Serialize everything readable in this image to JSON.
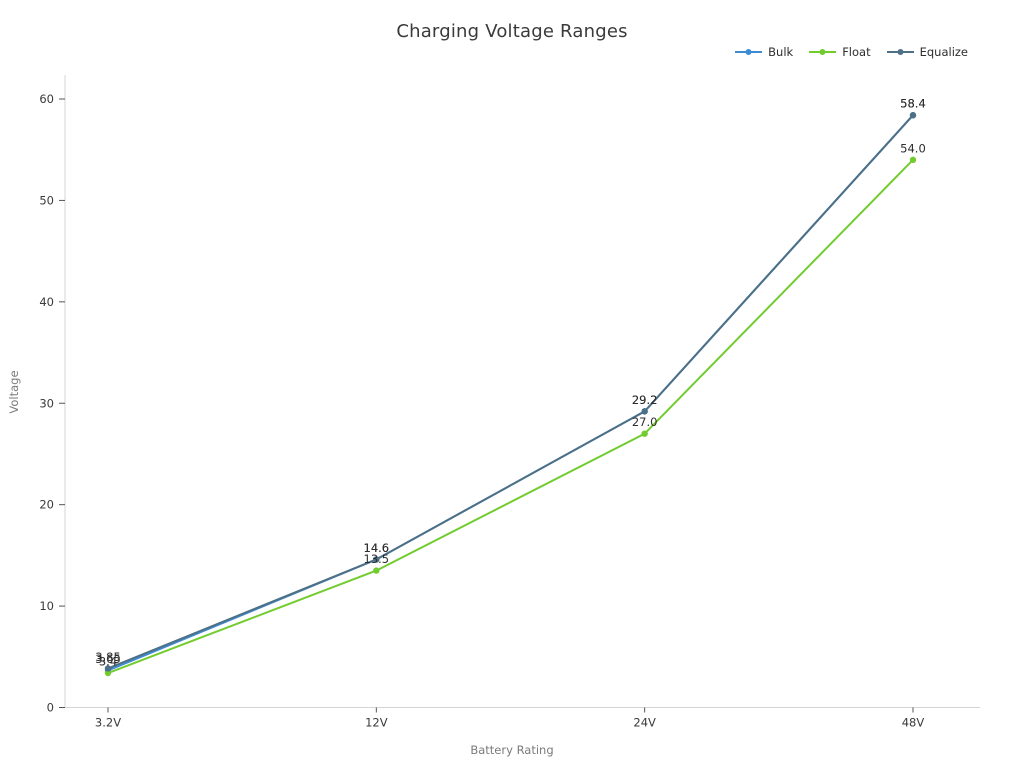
{
  "chart_data": {
    "type": "line",
    "title": "Charging Voltage Ranges",
    "xlabel": "Battery Rating",
    "ylabel": "Voltage",
    "categories": [
      "3.2V",
      "12V",
      "24V",
      "48V"
    ],
    "series": [
      {
        "name": "Bulk",
        "color": "#3d8bd4",
        "values": [
          3.65,
          14.6,
          29.2,
          58.4
        ],
        "point_labels": [
          "3.65",
          "14.6",
          "29.2",
          "58.4"
        ]
      },
      {
        "name": "Float",
        "color": "#72cc30",
        "values": [
          3.4,
          13.5,
          27.0,
          54.0
        ],
        "point_labels": [
          "3.4",
          "13.5",
          "27.0",
          "54.0"
        ]
      },
      {
        "name": "Equalize",
        "color": "#4e7086",
        "values": [
          3.85,
          14.6,
          29.2,
          58.4
        ],
        "point_labels": [
          "3.85",
          "14.6",
          "29.2",
          "58.4"
        ]
      }
    ],
    "ylim": [
      0,
      60
    ],
    "yticks": [
      0,
      10,
      20,
      30,
      40,
      50,
      60
    ],
    "grid": false,
    "legend_position": "top-right",
    "marker": "circle",
    "notes": "Bulk line and its 12V/24V/48V labels coincide with Equalize; labels at 3.2V overlap"
  },
  "style": {
    "axis_line_color": "#d4d4d4",
    "tick_color": "#555555",
    "tick_label_color": "#3a3a3a",
    "point_label_color": "#2e2e2e",
    "title_color": "#3a3a3a",
    "axis_title_color": "#7b7b7b",
    "background": "#ffffff"
  }
}
